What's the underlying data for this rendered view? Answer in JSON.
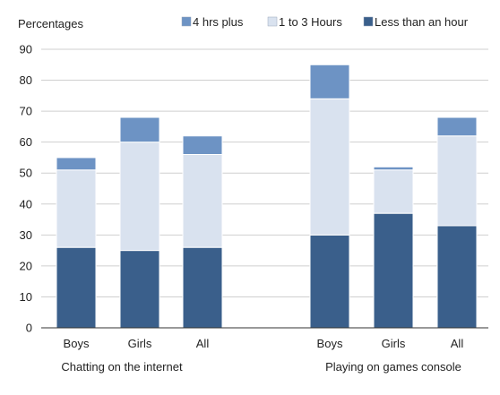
{
  "chart_data": {
    "type": "bar",
    "stacked": true,
    "ylabel": "Percentages",
    "ylim": [
      0,
      90
    ],
    "yticks": [
      0,
      10,
      20,
      30,
      40,
      50,
      60,
      70,
      80,
      90
    ],
    "grid": true,
    "legend_position": "top-right",
    "groups": [
      {
        "label": "Chatting on the internet",
        "categories": [
          "Boys",
          "Girls",
          "All"
        ]
      },
      {
        "label": "Playing on games console",
        "categories": [
          "Boys",
          "Girls",
          "All"
        ]
      }
    ],
    "series": [
      {
        "name": "Less than an hour",
        "color": "#3a5f8b",
        "values": [
          26,
          25,
          26,
          30,
          37,
          33
        ]
      },
      {
        "name": "1 to 3 Hours",
        "color": "#d9e2ef",
        "values": [
          25,
          35,
          30,
          44,
          14,
          29
        ]
      },
      {
        "name": "4 hrs plus",
        "color": "#6d93c4",
        "values": [
          4,
          8,
          6,
          11,
          1,
          6
        ]
      }
    ],
    "legend_order": [
      "4 hrs plus",
      "1 to 3 Hours",
      "Less than an hour"
    ]
  }
}
